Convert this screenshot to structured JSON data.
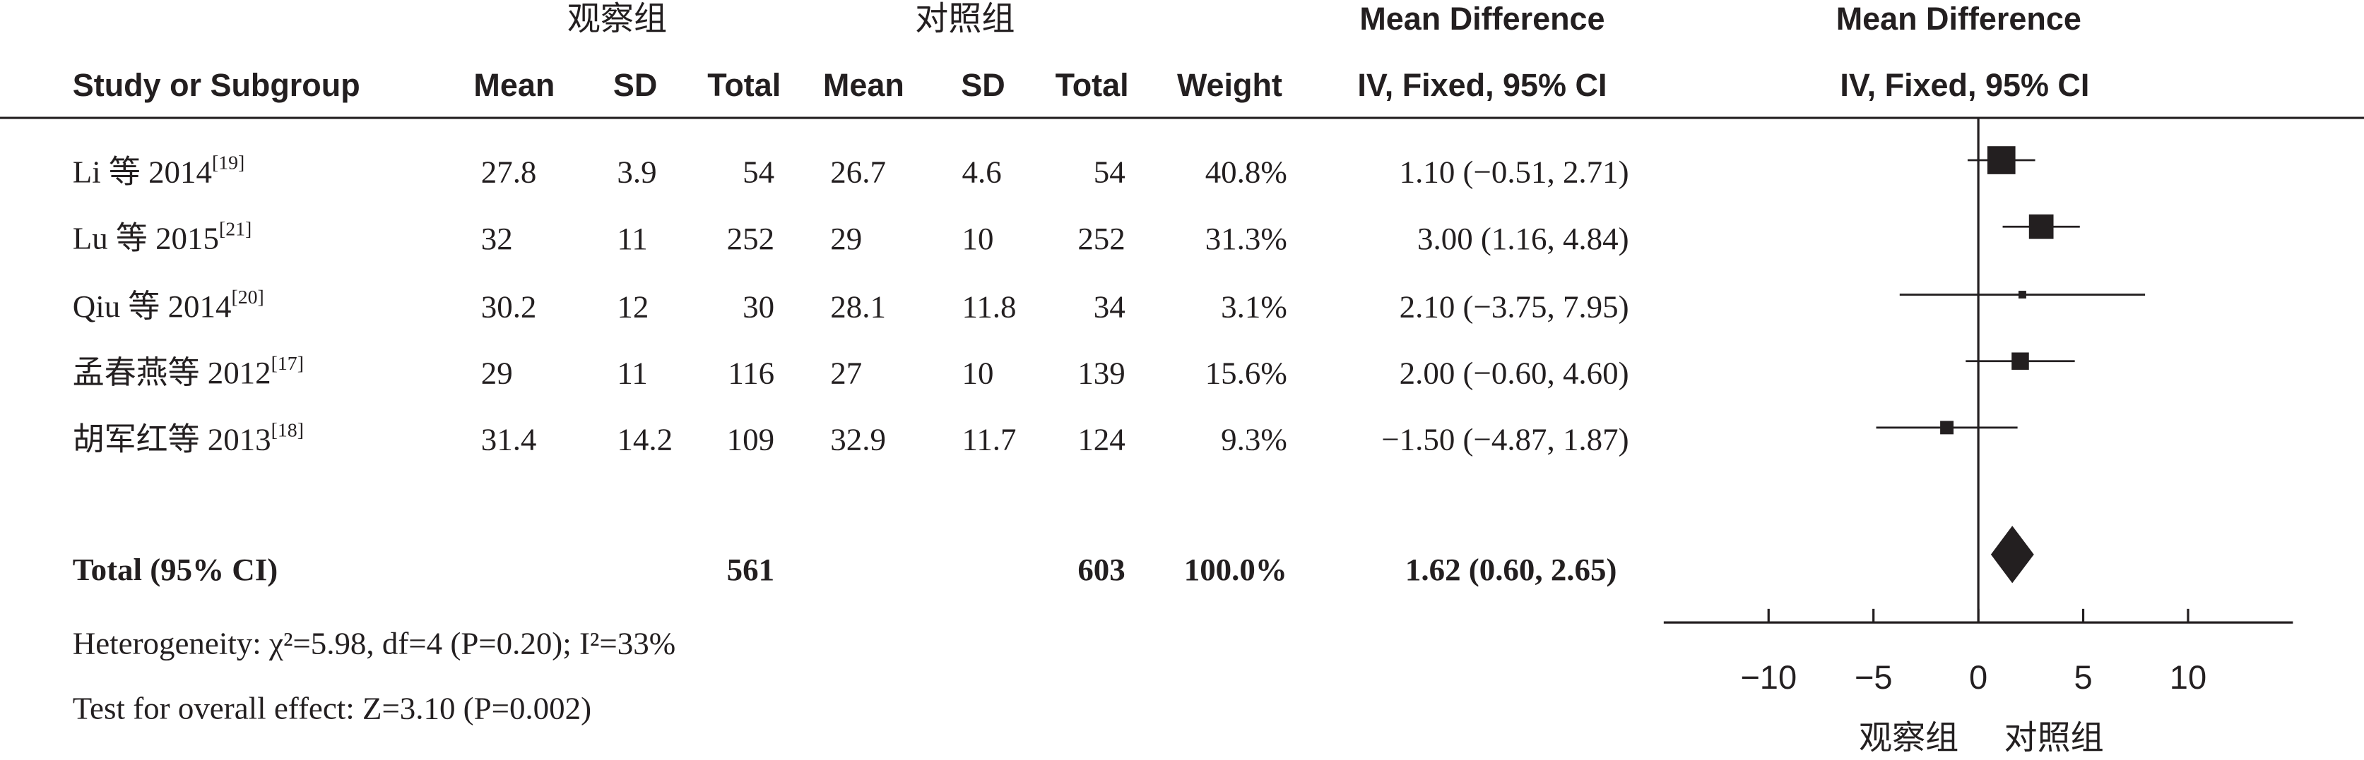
{
  "chart_data": {
    "type": "forest",
    "group_headers": [
      "观察组",
      "对照组"
    ],
    "columns": [
      "Study or Subgroup",
      "Mean",
      "SD",
      "Total",
      "Mean",
      "SD",
      "Total",
      "Weight"
    ],
    "effect_header": [
      "Mean Difference",
      "IV, Fixed, 95% CI"
    ],
    "plot_header": [
      "Mean Difference",
      "IV, Fixed, 95% CI"
    ],
    "studies": [
      {
        "name": "Li 等 2014",
        "ref": "[19]",
        "mean1": 27.8,
        "sd1": 3.9,
        "n1": 54,
        "mean2": 26.7,
        "sd2": 4.6,
        "n2": 54,
        "weight": 40.8,
        "weight_label": "40.8%",
        "md": 1.1,
        "lo": -0.51,
        "hi": 2.71,
        "ci_label": "1.10 (−0.51, 2.71)"
      },
      {
        "name": "Lu 等 2015",
        "ref": "[21]",
        "mean1": 32,
        "sd1": 11,
        "n1": 252,
        "mean2": 29,
        "sd2": 10,
        "n2": 252,
        "weight": 31.3,
        "weight_label": "31.3%",
        "md": 3.0,
        "lo": 1.16,
        "hi": 4.84,
        "ci_label": "3.00 (1.16, 4.84)"
      },
      {
        "name": "Qiu 等 2014",
        "ref": "[20]",
        "mean1": 30.2,
        "sd1": 12,
        "n1": 30,
        "mean2": 28.1,
        "sd2": 11.8,
        "n2": 34,
        "weight": 3.1,
        "weight_label": "3.1%",
        "md": 2.1,
        "lo": -3.75,
        "hi": 7.95,
        "ci_label": "2.10 (−3.75, 7.95)"
      },
      {
        "name": "孟春燕等 2012",
        "ref": "[17]",
        "mean1": 29,
        "sd1": 11,
        "n1": 116,
        "mean2": 27,
        "sd2": 10,
        "n2": 139,
        "weight": 15.6,
        "weight_label": "15.6%",
        "md": 2.0,
        "lo": -0.6,
        "hi": 4.6,
        "ci_label": "2.00 (−0.60, 4.60)"
      },
      {
        "name": "胡军红等 2013",
        "ref": "[18]",
        "mean1": 31.4,
        "sd1": 14.2,
        "n1": 109,
        "mean2": 32.9,
        "sd2": 11.7,
        "n2": 124,
        "weight": 9.3,
        "weight_label": "9.3%",
        "md": -1.5,
        "lo": -4.87,
        "hi": 1.87,
        "ci_label": "−1.50 (−4.87, 1.87)"
      }
    ],
    "total": {
      "name": "Total (95% CI)",
      "n1": 561,
      "n2": 603,
      "weight_label": "100.0%",
      "md": 1.62,
      "lo": 0.6,
      "hi": 2.65,
      "ci_label": "1.62 (0.60, 2.65)"
    },
    "heterogeneity": "Heterogeneity: χ²=5.98, df=4 (P=0.20); I²=33%",
    "overall_effect": "Test for overall effect: Z=3.10 (P=0.002)",
    "xlim": [
      -15,
      15
    ],
    "xticks": [
      -10,
      -5,
      0,
      5,
      10
    ],
    "favours": [
      "观察组",
      "对照组"
    ]
  }
}
